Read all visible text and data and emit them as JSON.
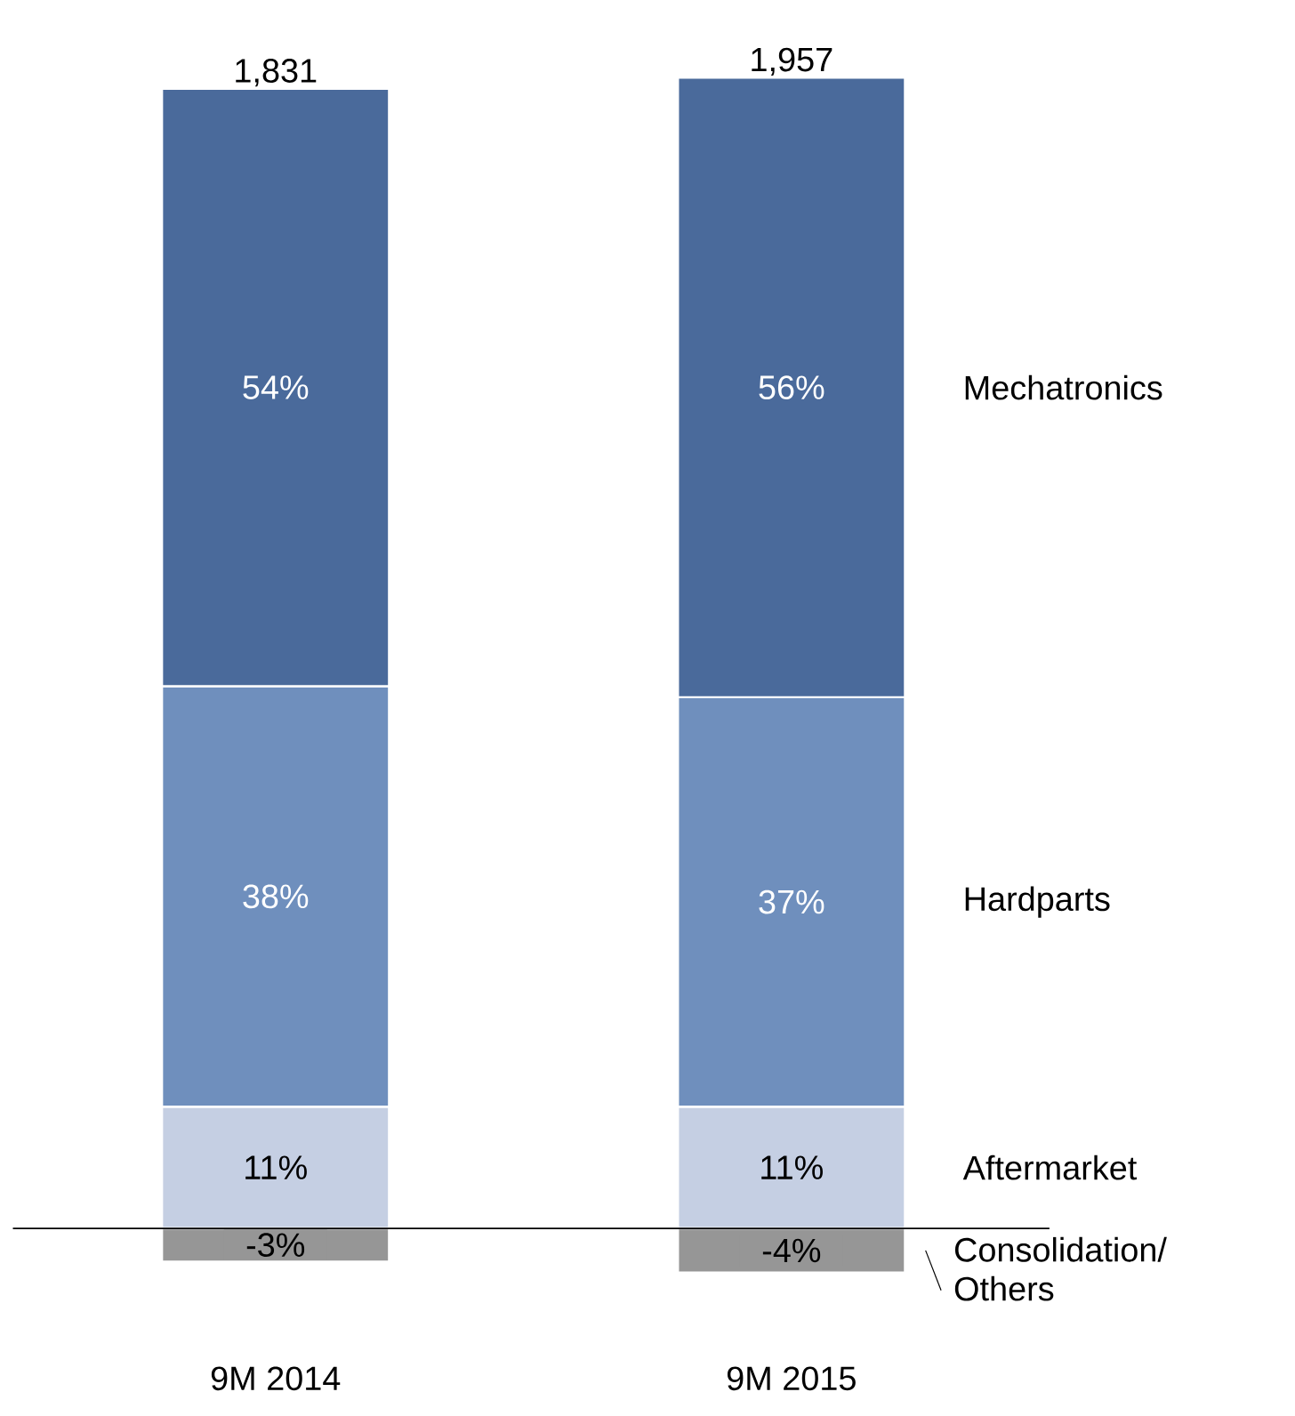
{
  "chart_data": {
    "type": "bar",
    "stacked": true,
    "categories": [
      "9M 2014",
      "9M 2015"
    ],
    "series": [
      {
        "name": "Aftermarket",
        "color": "#c5cfe3",
        "values": [
          11,
          11
        ],
        "value_labels": [
          "11%",
          "11%"
        ]
      },
      {
        "name": "Hardparts",
        "color": "#6f8fbd",
        "values": [
          38,
          37
        ],
        "value_labels": [
          "38%",
          "37%"
        ]
      },
      {
        "name": "Mechatronics",
        "color": "#4a6a9b",
        "values": [
          54,
          56
        ],
        "value_labels": [
          "54%",
          "56%"
        ]
      },
      {
        "name": "Consolidation/ Others",
        "color": "#969696",
        "values": [
          -3,
          -4
        ],
        "value_labels": [
          "-3%",
          "-4%"
        ]
      }
    ],
    "annotations": [
      {
        "text": "1,831",
        "x": "9M 2014",
        "y": 103
      },
      {
        "text": "1,957",
        "x": "9M 2015",
        "y": 104
      }
    ]
  }
}
